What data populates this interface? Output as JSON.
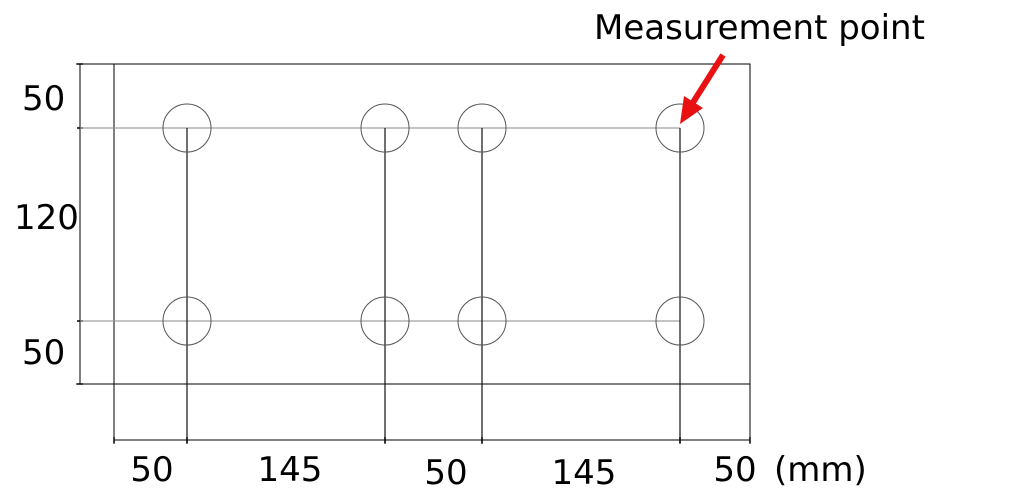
{
  "callout": {
    "label": "Measurement point",
    "arrow_color": "#e81010"
  },
  "dimensions": {
    "vertical": [
      "50",
      "120",
      "50"
    ],
    "horizontal": [
      "50",
      "145",
      "50",
      "145",
      "50"
    ],
    "unit": "(mm)"
  },
  "holes": {
    "rows": 2,
    "columns": 4
  }
}
